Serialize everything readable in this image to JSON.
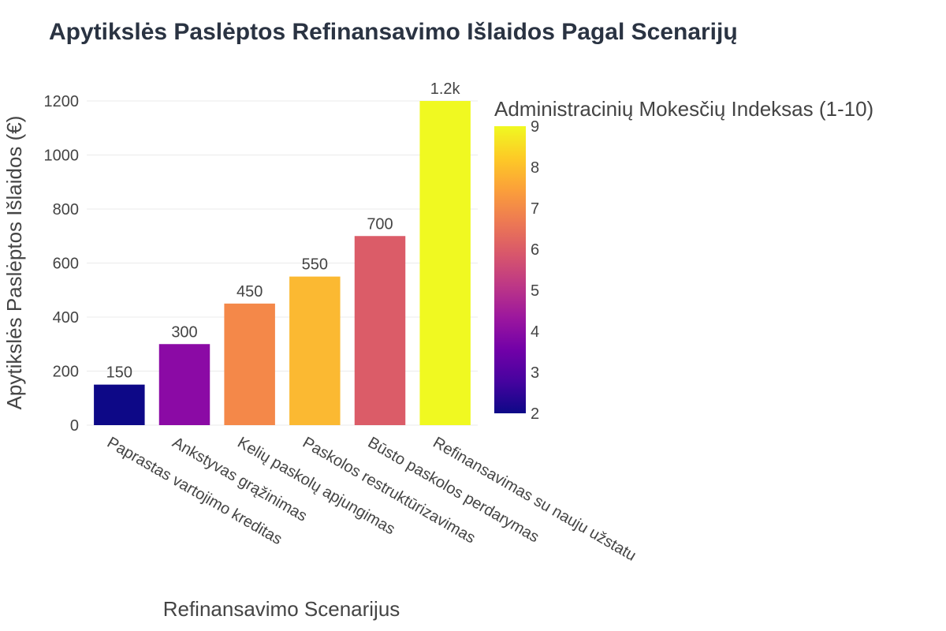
{
  "chart_data": {
    "type": "bar",
    "title": "Apytikslės Paslėptos Refinansavimo Išlaidos Pagal Scenarijų",
    "xlabel": "Refinansavimo Scenarijus",
    "ylabel": "Apytikslės Paslėptos Išlaidos (€)",
    "categories": [
      "Paprastas vartojimo kreditas",
      "Ankstyvas grąžinimas",
      "Kelių paskolų apjungimas",
      "Paskolos restruktūrizavimas",
      "Būsto paskolos perdarymas",
      "Refinansavimas su nauju užstatu"
    ],
    "values": [
      150,
      300,
      450,
      550,
      700,
      1200
    ],
    "value_labels": [
      "150",
      "300",
      "450",
      "550",
      "700",
      "1.2k"
    ],
    "color_values": [
      2,
      4,
      7,
      8,
      6,
      9
    ],
    "bar_colors": [
      "#0d0887",
      "#8b0aa5",
      "#f48849",
      "#fbb932",
      "#db5c68",
      "#f0f921"
    ],
    "ylim": [
      0,
      1200
    ],
    "yticks": [
      0,
      200,
      400,
      600,
      800,
      1000,
      1200
    ],
    "grid": true,
    "colorbar": {
      "title": "Administracinių Mokesčių Indeksas (1-10)",
      "range": [
        2,
        9
      ],
      "ticks": [
        2,
        3,
        4,
        5,
        6,
        7,
        8,
        9
      ],
      "colorscale": "plasma"
    }
  }
}
